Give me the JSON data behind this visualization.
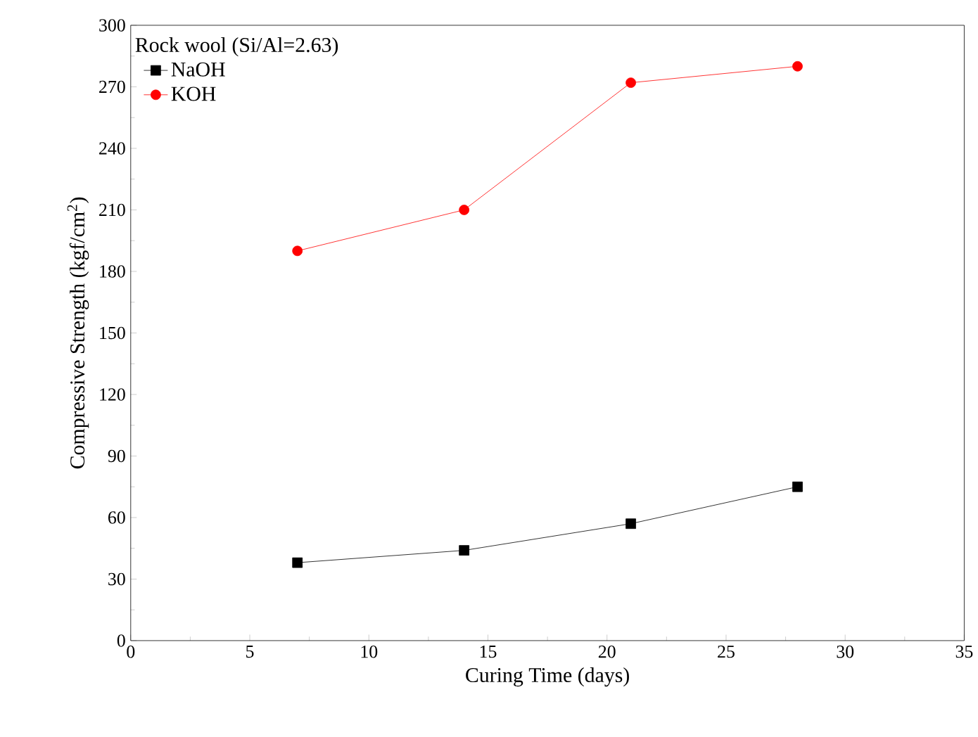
{
  "chart_data": {
    "type": "line",
    "xlabel": "Curing Time (days)",
    "ylabel": "Compressive Strength (kgf/cm$^{2}$)",
    "legend_title": "Rock wool (Si/Al=2.63)",
    "legend": "top left",
    "grid": false,
    "line_style": "solid",
    "xlim": [
      0,
      35
    ],
    "xticks": [
      0,
      5,
      10,
      15,
      20,
      25,
      30,
      35
    ],
    "ylim": [
      0,
      300
    ],
    "yticks": [
      0,
      30,
      60,
      90,
      120,
      150,
      180,
      210,
      240,
      270,
      300
    ],
    "series": [
      {
        "name": "NaOH",
        "color": "#000000",
        "marker": "square",
        "x": [
          7,
          14,
          21,
          28
        ],
        "values": [
          38,
          44,
          57,
          75
        ]
      },
      {
        "name": "KOH",
        "color": "#ff0000",
        "marker": "circle",
        "x": [
          7,
          14,
          21,
          28
        ],
        "values": [
          190,
          210,
          272,
          280
        ]
      }
    ]
  }
}
